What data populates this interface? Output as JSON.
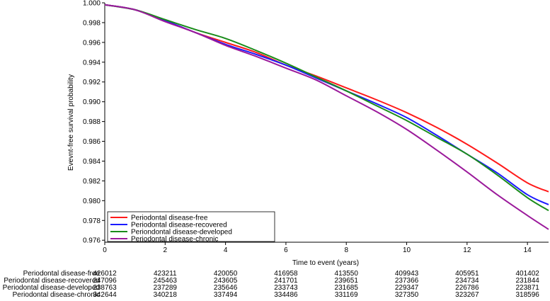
{
  "chart_data": {
    "type": "line",
    "title": "",
    "xlabel": "Time to event (years)",
    "ylabel": "Evevnt-free survival probability",
    "xlim": [
      0,
      14.7
    ],
    "ylim": [
      0.9758,
      1.0
    ],
    "xticks": [
      0,
      2,
      4,
      6,
      8,
      10,
      12,
      14
    ],
    "yticks": [
      1.0,
      0.998,
      0.996,
      0.994,
      0.992,
      0.99,
      0.988,
      0.986,
      0.984,
      0.982,
      0.98,
      0.978,
      0.976
    ],
    "xtick_labels": [
      "0",
      "2",
      "4",
      "6",
      "8",
      "10",
      "12",
      "14"
    ],
    "ytick_labels": [
      "1.000",
      "0.998",
      "0.996",
      "0.994",
      "0.992",
      "0.990",
      "0.988",
      "0.986",
      "0.984",
      "0.982",
      "0.980",
      "0.978",
      "0.976"
    ],
    "legend_position": "bottom-left",
    "grid": false,
    "series": [
      {
        "name": "Periodontal disease-free",
        "color": "#ff1a1a",
        "x": [
          0,
          1,
          2,
          3,
          4,
          5,
          6,
          7,
          8,
          9,
          10,
          11,
          12,
          13,
          14,
          14.7
        ],
        "y": [
          0.9998,
          0.9993,
          0.9982,
          0.997,
          0.996,
          0.995,
          0.9937,
          0.9926,
          0.9914,
          0.9902,
          0.9889,
          0.9874,
          0.9857,
          0.9838,
          0.9818,
          0.9809
        ]
      },
      {
        "name": "Periodontal disease-recovered",
        "color": "#1a1aff",
        "x": [
          0,
          1,
          2,
          3,
          4,
          5,
          6,
          7,
          8,
          9,
          10,
          11,
          12,
          13,
          14,
          14.7
        ],
        "y": [
          0.9998,
          0.9993,
          0.9982,
          0.997,
          0.9958,
          0.9948,
          0.9937,
          0.9924,
          0.9911,
          0.9898,
          0.9884,
          0.9866,
          0.9847,
          0.9828,
          0.9806,
          0.9796
        ]
      },
      {
        "name": "Periondontal disease-developed",
        "color": "#1a8c1a",
        "x": [
          0,
          1,
          2,
          3,
          4,
          5,
          6,
          7,
          8,
          9,
          10,
          11,
          12,
          13,
          14,
          14.7
        ],
        "y": [
          0.9998,
          0.9993,
          0.9983,
          0.9973,
          0.9964,
          0.9952,
          0.9939,
          0.9925,
          0.9911,
          0.9896,
          0.9881,
          0.9864,
          0.9847,
          0.9826,
          0.9803,
          0.979
        ]
      },
      {
        "name": "Periodontal disease-chronic",
        "color": "#9b1a9b",
        "x": [
          0,
          1,
          2,
          3,
          4,
          5,
          6,
          7,
          8,
          9,
          10,
          11,
          12,
          13,
          14,
          14.7
        ],
        "y": [
          0.9998,
          0.9993,
          0.9981,
          0.997,
          0.9957,
          0.9946,
          0.9934,
          0.9922,
          0.9906,
          0.989,
          0.9872,
          0.9851,
          0.9829,
          0.9806,
          0.9785,
          0.9771
        ]
      }
    ]
  },
  "risk_table": {
    "times": [
      0,
      2,
      4,
      6,
      8,
      10,
      12,
      14
    ],
    "rows": [
      {
        "label": "Periodontal disease-free",
        "values": [
          "426012",
          "423211",
          "420050",
          "416958",
          "413550",
          "409943",
          "405951",
          "401402"
        ]
      },
      {
        "label": "Periodontal disease-recovered",
        "values": [
          "247096",
          "245463",
          "243605",
          "241701",
          "239651",
          "237366",
          "234734",
          "231844"
        ]
      },
      {
        "label": "Periodontal disease-developed",
        "values": [
          "238763",
          "237289",
          "235646",
          "233743",
          "231685",
          "229347",
          "226786",
          "223871"
        ]
      },
      {
        "label": "Periodontal disease-chronic",
        "values": [
          "342644",
          "340218",
          "337494",
          "334486",
          "331169",
          "327350",
          "323267",
          "318596"
        ]
      }
    ]
  }
}
